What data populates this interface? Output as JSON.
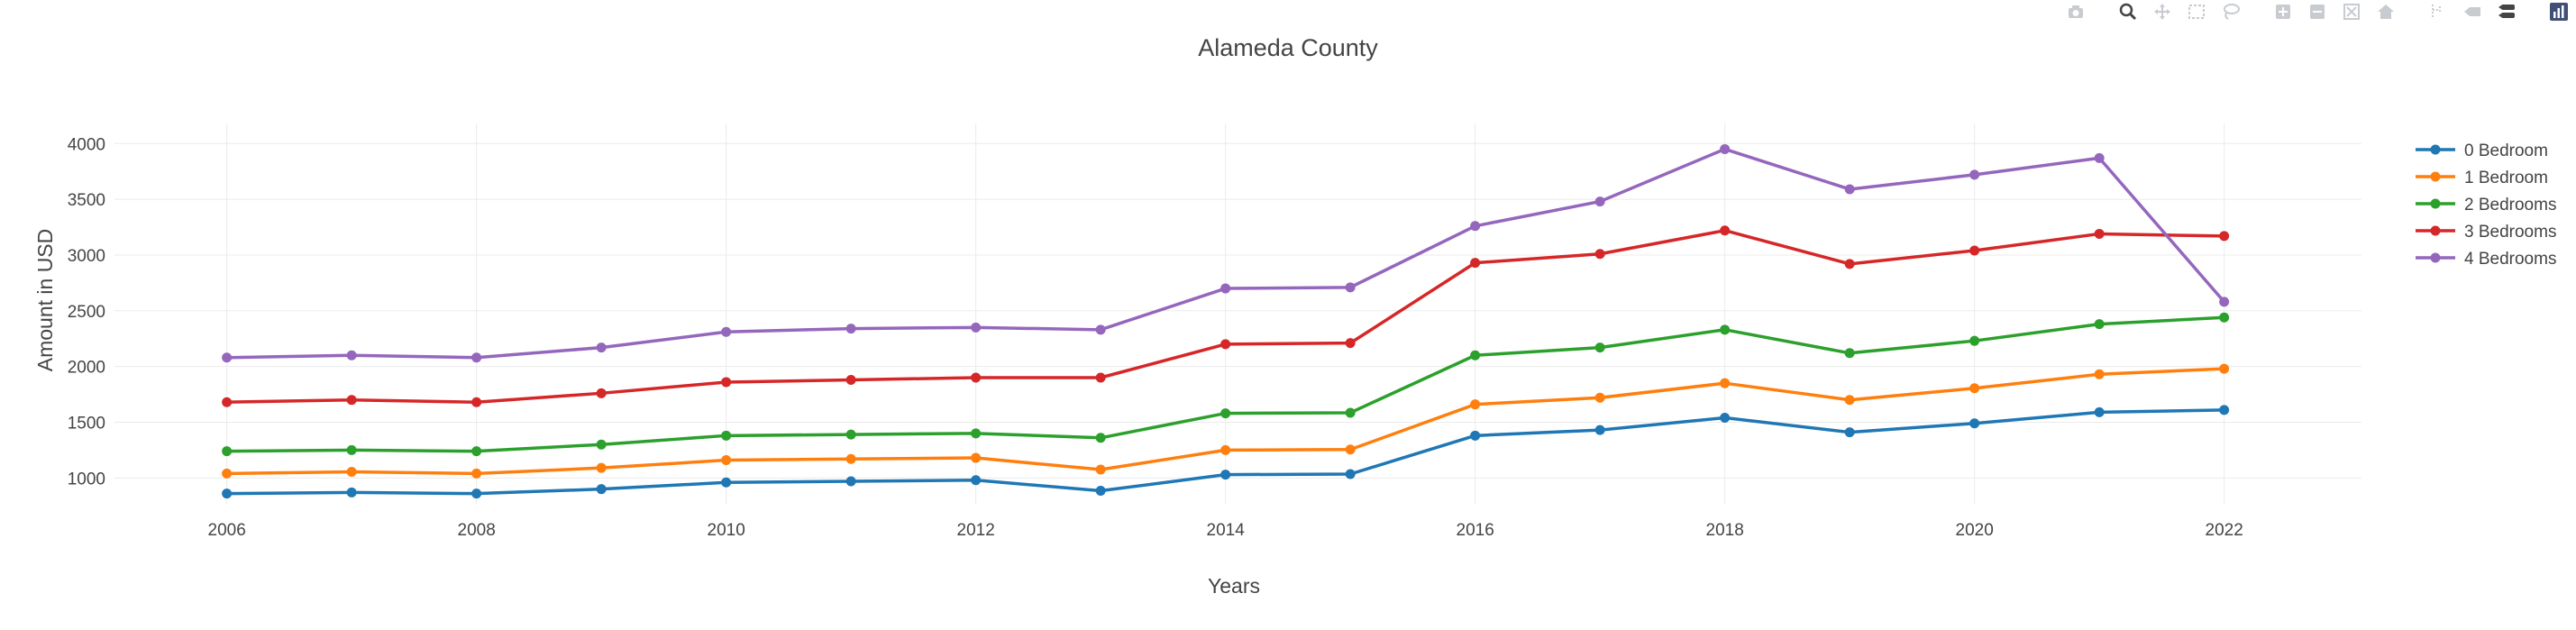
{
  "modebar": [
    {
      "name": "camera-icon"
    },
    {
      "name": "zoom-icon"
    },
    {
      "name": "pan-icon"
    },
    {
      "name": "box-select-icon"
    },
    {
      "name": "lasso-select-icon"
    },
    {
      "name": "zoom-in-icon"
    },
    {
      "name": "zoom-out-icon"
    },
    {
      "name": "autoscale-icon"
    },
    {
      "name": "home-icon"
    },
    {
      "name": "spike-lines-icon"
    },
    {
      "name": "hover-closest-icon"
    },
    {
      "name": "hover-compare-icon"
    },
    {
      "name": "plotly-logo-icon"
    }
  ],
  "chart_data": {
    "type": "line",
    "title": "Alameda County",
    "xlabel": "Years",
    "ylabel": "Amount in USD",
    "x": [
      2006,
      2007,
      2008,
      2009,
      2010,
      2011,
      2012,
      2013,
      2014,
      2015,
      2016,
      2017,
      2018,
      2019,
      2020,
      2021,
      2022
    ],
    "xticks": [
      "2006",
      "2008",
      "2010",
      "2012",
      "2014",
      "2016",
      "2018",
      "2020",
      "2022"
    ],
    "yticks": [
      "1000",
      "1500",
      "2000",
      "2500",
      "3000",
      "3500",
      "4000"
    ],
    "xlim": [
      2005.1,
      2023.1
    ],
    "ylim": [
      760,
      4180
    ],
    "grid": true,
    "legend_position": "right",
    "series": [
      {
        "name": "0 Bedroom",
        "color": "#1f77b4",
        "values": [
          860,
          870,
          860,
          900,
          960,
          970,
          980,
          885,
          1030,
          1035,
          1380,
          1430,
          1540,
          1410,
          1490,
          1590,
          1610
        ]
      },
      {
        "name": "1 Bedroom",
        "color": "#ff7f0e",
        "values": [
          1040,
          1055,
          1040,
          1090,
          1160,
          1170,
          1180,
          1075,
          1250,
          1255,
          1660,
          1720,
          1850,
          1700,
          1805,
          1930,
          1980
        ]
      },
      {
        "name": "2 Bedrooms",
        "color": "#2ca02c",
        "values": [
          1240,
          1250,
          1240,
          1300,
          1380,
          1390,
          1400,
          1360,
          1580,
          1585,
          2100,
          2170,
          2330,
          2120,
          2230,
          2380,
          2440
        ]
      },
      {
        "name": "3 Bedrooms",
        "color": "#d62728",
        "values": [
          1680,
          1700,
          1680,
          1760,
          1860,
          1880,
          1900,
          1900,
          2200,
          2210,
          2930,
          3010,
          3220,
          2920,
          3040,
          3190,
          3170
        ]
      },
      {
        "name": "4 Bedrooms",
        "color": "#9467bd",
        "values": [
          2080,
          2100,
          2080,
          2170,
          2310,
          2340,
          2350,
          2330,
          2700,
          2710,
          3260,
          3480,
          3950,
          3590,
          3720,
          3870,
          2580
        ]
      }
    ]
  }
}
